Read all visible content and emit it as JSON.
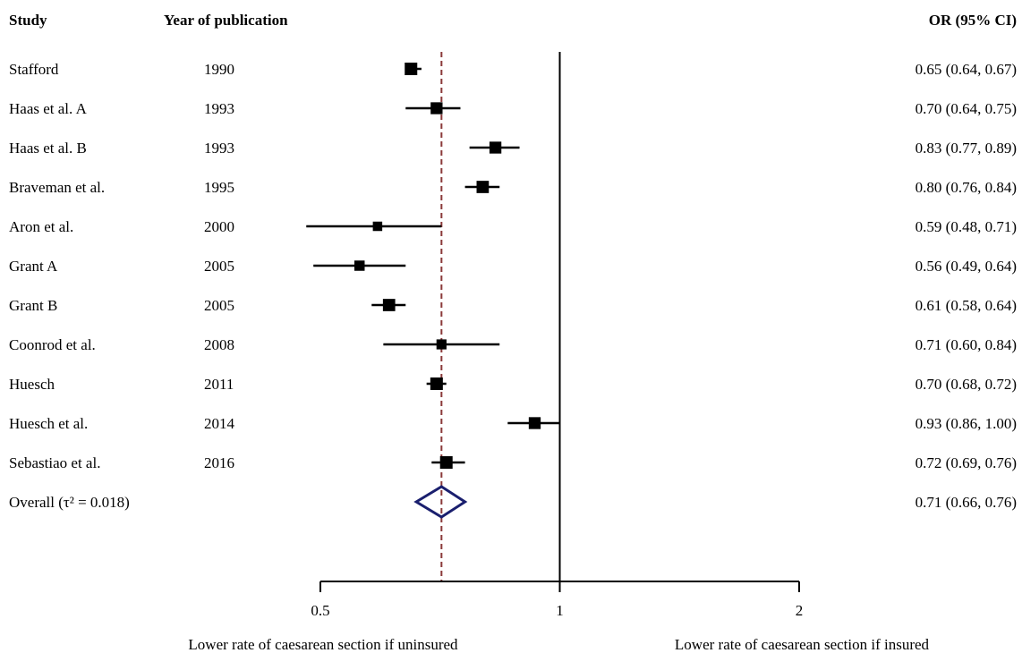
{
  "headers": {
    "study": "Study",
    "year": "Year of publication",
    "or_ci": "OR (95% CI)"
  },
  "chart_data": {
    "type": "forest",
    "title": "",
    "x_scale": "log",
    "xlim": [
      0.5,
      2
    ],
    "x_ticks": [
      0.5,
      1,
      2
    ],
    "x_tick_labels": [
      "0.5",
      "1",
      "2"
    ],
    "null_line": 1,
    "reference_line": 0.71,
    "xlabel_left": "Lower rate of caesarean section if uninsured",
    "xlabel_right": "Lower rate of caesarean section if insured",
    "studies": [
      {
        "study": "Stafford",
        "year": "1990",
        "or": 0.65,
        "lower": 0.64,
        "upper": 0.67,
        "ci_text": "0.65 (0.64, 0.67)",
        "weight": 1.0
      },
      {
        "study": "Haas et al. A",
        "year": "1993",
        "or": 0.7,
        "lower": 0.64,
        "upper": 0.75,
        "ci_text": "0.70 (0.64, 0.75)",
        "weight": 0.95
      },
      {
        "study": "Haas et al. B",
        "year": "1993",
        "or": 0.83,
        "lower": 0.77,
        "upper": 0.89,
        "ci_text": "0.83 (0.77, 0.89)",
        "weight": 0.95
      },
      {
        "study": "Braveman et al.",
        "year": "1995",
        "or": 0.8,
        "lower": 0.76,
        "upper": 0.84,
        "ci_text": "0.80 (0.76, 0.84)",
        "weight": 0.98
      },
      {
        "study": "Aron et al.",
        "year": "2000",
        "or": 0.59,
        "lower": 0.48,
        "upper": 0.71,
        "ci_text": "0.59 (0.48, 0.71)",
        "weight": 0.75
      },
      {
        "study": "Grant A",
        "year": "2005",
        "or": 0.56,
        "lower": 0.49,
        "upper": 0.64,
        "ci_text": "0.56 (0.49, 0.64)",
        "weight": 0.82
      },
      {
        "study": "Grant B",
        "year": "2005",
        "or": 0.61,
        "lower": 0.58,
        "upper": 0.64,
        "ci_text": "0.61 (0.58, 0.64)",
        "weight": 0.98
      },
      {
        "study": "Coonrod et al.",
        "year": "2008",
        "or": 0.71,
        "lower": 0.6,
        "upper": 0.84,
        "ci_text": "0.71 (0.60, 0.84)",
        "weight": 0.8
      },
      {
        "study": "Huesch",
        "year": "2011",
        "or": 0.7,
        "lower": 0.68,
        "upper": 0.72,
        "ci_text": "0.70 (0.68, 0.72)",
        "weight": 1.0
      },
      {
        "study": "Huesch et al.",
        "year": "2014",
        "or": 0.93,
        "lower": 0.86,
        "upper": 1.0,
        "ci_text": "0.93 (0.86, 1.00)",
        "weight": 0.95
      },
      {
        "study": "Sebastiao et al.",
        "year": "2016",
        "or": 0.72,
        "lower": 0.69,
        "upper": 0.76,
        "ci_text": "0.72 (0.69, 0.76)",
        "weight": 1.0
      }
    ],
    "overall": {
      "label": "Overall",
      "tau_text": "(τ² = 0.018)",
      "or": 0.71,
      "lower": 0.66,
      "upper": 0.76,
      "ci_text": "0.71 (0.66, 0.76)"
    },
    "colors": {
      "marker": "#000000",
      "diamond": "#1a1f6e",
      "reference_line": "#8b3a3a",
      "axis": "#000000"
    }
  }
}
